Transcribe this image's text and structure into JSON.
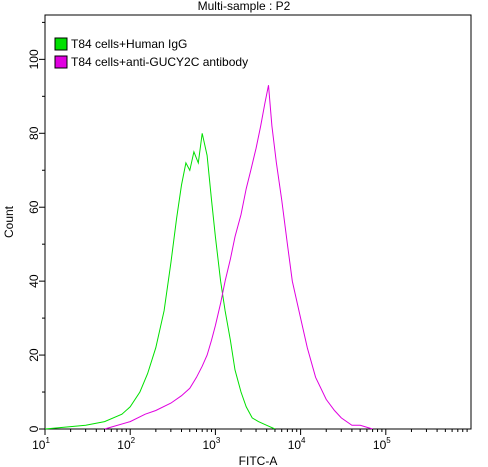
{
  "chart_data": {
    "type": "line",
    "title": "Multi-sample : P2",
    "xlabel": "FITC-A",
    "ylabel": "Count",
    "x_scale": "log",
    "xlim": [
      10,
      1000000
    ],
    "ylim": [
      0,
      112
    ],
    "x_ticks": [
      {
        "value": 10,
        "base": "10",
        "exp": "1"
      },
      {
        "value": 100,
        "base": "10",
        "exp": "2"
      },
      {
        "value": 1000,
        "base": "10",
        "exp": "3"
      },
      {
        "value": 10000,
        "base": "10",
        "exp": "4"
      },
      {
        "value": 100000,
        "base": "10",
        "exp": "5"
      }
    ],
    "y_ticks": [
      0,
      20,
      40,
      60,
      80,
      100
    ],
    "legend_position": "top-left",
    "series": [
      {
        "name": "T84 cells+Human IgG",
        "color": "#00e000",
        "x": [
          10,
          30,
          50,
          80,
          100,
          130,
          160,
          200,
          250,
          300,
          350,
          400,
          450,
          500,
          560,
          630,
          700,
          800,
          900,
          1000,
          1150,
          1300,
          1500,
          1700,
          2000,
          2300,
          2700,
          3200,
          4000,
          5000
        ],
        "y": [
          0,
          1,
          2,
          4,
          6,
          10,
          15,
          22,
          32,
          45,
          57,
          66,
          72,
          70,
          75,
          72,
          80,
          74,
          62,
          52,
          40,
          32,
          24,
          16,
          10,
          6,
          3,
          2,
          1,
          0
        ]
      },
      {
        "name": "T84 cells+anti-GUCY2C antibody",
        "color": "#e000e0",
        "x": [
          50,
          100,
          150,
          200,
          300,
          400,
          500,
          600,
          700,
          800,
          900,
          1000,
          1150,
          1300,
          1500,
          1700,
          2000,
          2300,
          2600,
          3000,
          3400,
          3800,
          4200,
          4600,
          5200,
          6000,
          7000,
          8000,
          10000,
          12000,
          15000,
          20000,
          25000,
          30000,
          40000,
          50000,
          70000
        ],
        "y": [
          0,
          2,
          4,
          5,
          7,
          9,
          11,
          14,
          17,
          20,
          24,
          28,
          34,
          40,
          46,
          52,
          58,
          65,
          70,
          76,
          82,
          88,
          93,
          82,
          72,
          62,
          50,
          40,
          30,
          22,
          14,
          8,
          5,
          3,
          1,
          1,
          0
        ]
      }
    ]
  }
}
